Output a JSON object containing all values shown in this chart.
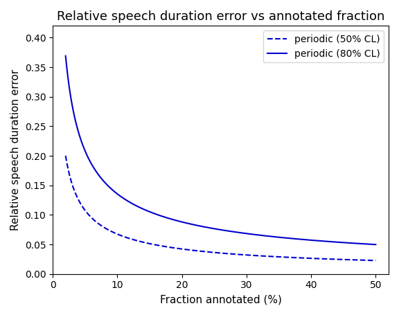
{
  "title": "Relative speech duration error vs annotated fraction",
  "xlabel": "Fraction annotated (%)",
  "ylabel": "Relative speech duration error",
  "line_color": "#0000cc",
  "x_50": [
    2,
    3,
    4,
    5,
    6,
    7,
    8,
    9,
    10,
    12,
    15,
    20,
    25,
    30,
    35,
    40,
    45,
    50
  ],
  "y_50": [
    0.207,
    0.155,
    0.125,
    0.105,
    0.092,
    0.083,
    0.076,
    0.071,
    0.067,
    0.06,
    0.052,
    0.044,
    0.038,
    0.034,
    0.031,
    0.028,
    0.026,
    0.018
  ],
  "x_80": [
    2,
    3,
    4,
    5,
    6,
    7,
    8,
    9,
    10,
    12,
    15,
    20,
    25,
    30,
    35,
    40,
    45,
    50
  ],
  "y_80": [
    0.408,
    0.305,
    0.24,
    0.2,
    0.174,
    0.156,
    0.143,
    0.133,
    0.135,
    0.122,
    0.107,
    0.092,
    0.082,
    0.076,
    0.068,
    0.06,
    0.053,
    0.042
  ],
  "legend_50": "periodic (50% CL)",
  "legend_80": "periodic (80% CL)",
  "xlim": [
    0,
    52
  ],
  "ylim": [
    0,
    0.42
  ],
  "xticks": [
    0,
    10,
    20,
    30,
    40,
    50
  ],
  "yticks": [
    0.0,
    0.05,
    0.1,
    0.15,
    0.2,
    0.25,
    0.3,
    0.35,
    0.4
  ],
  "figsize": [
    5.76,
    4.55
  ],
  "dpi": 100
}
